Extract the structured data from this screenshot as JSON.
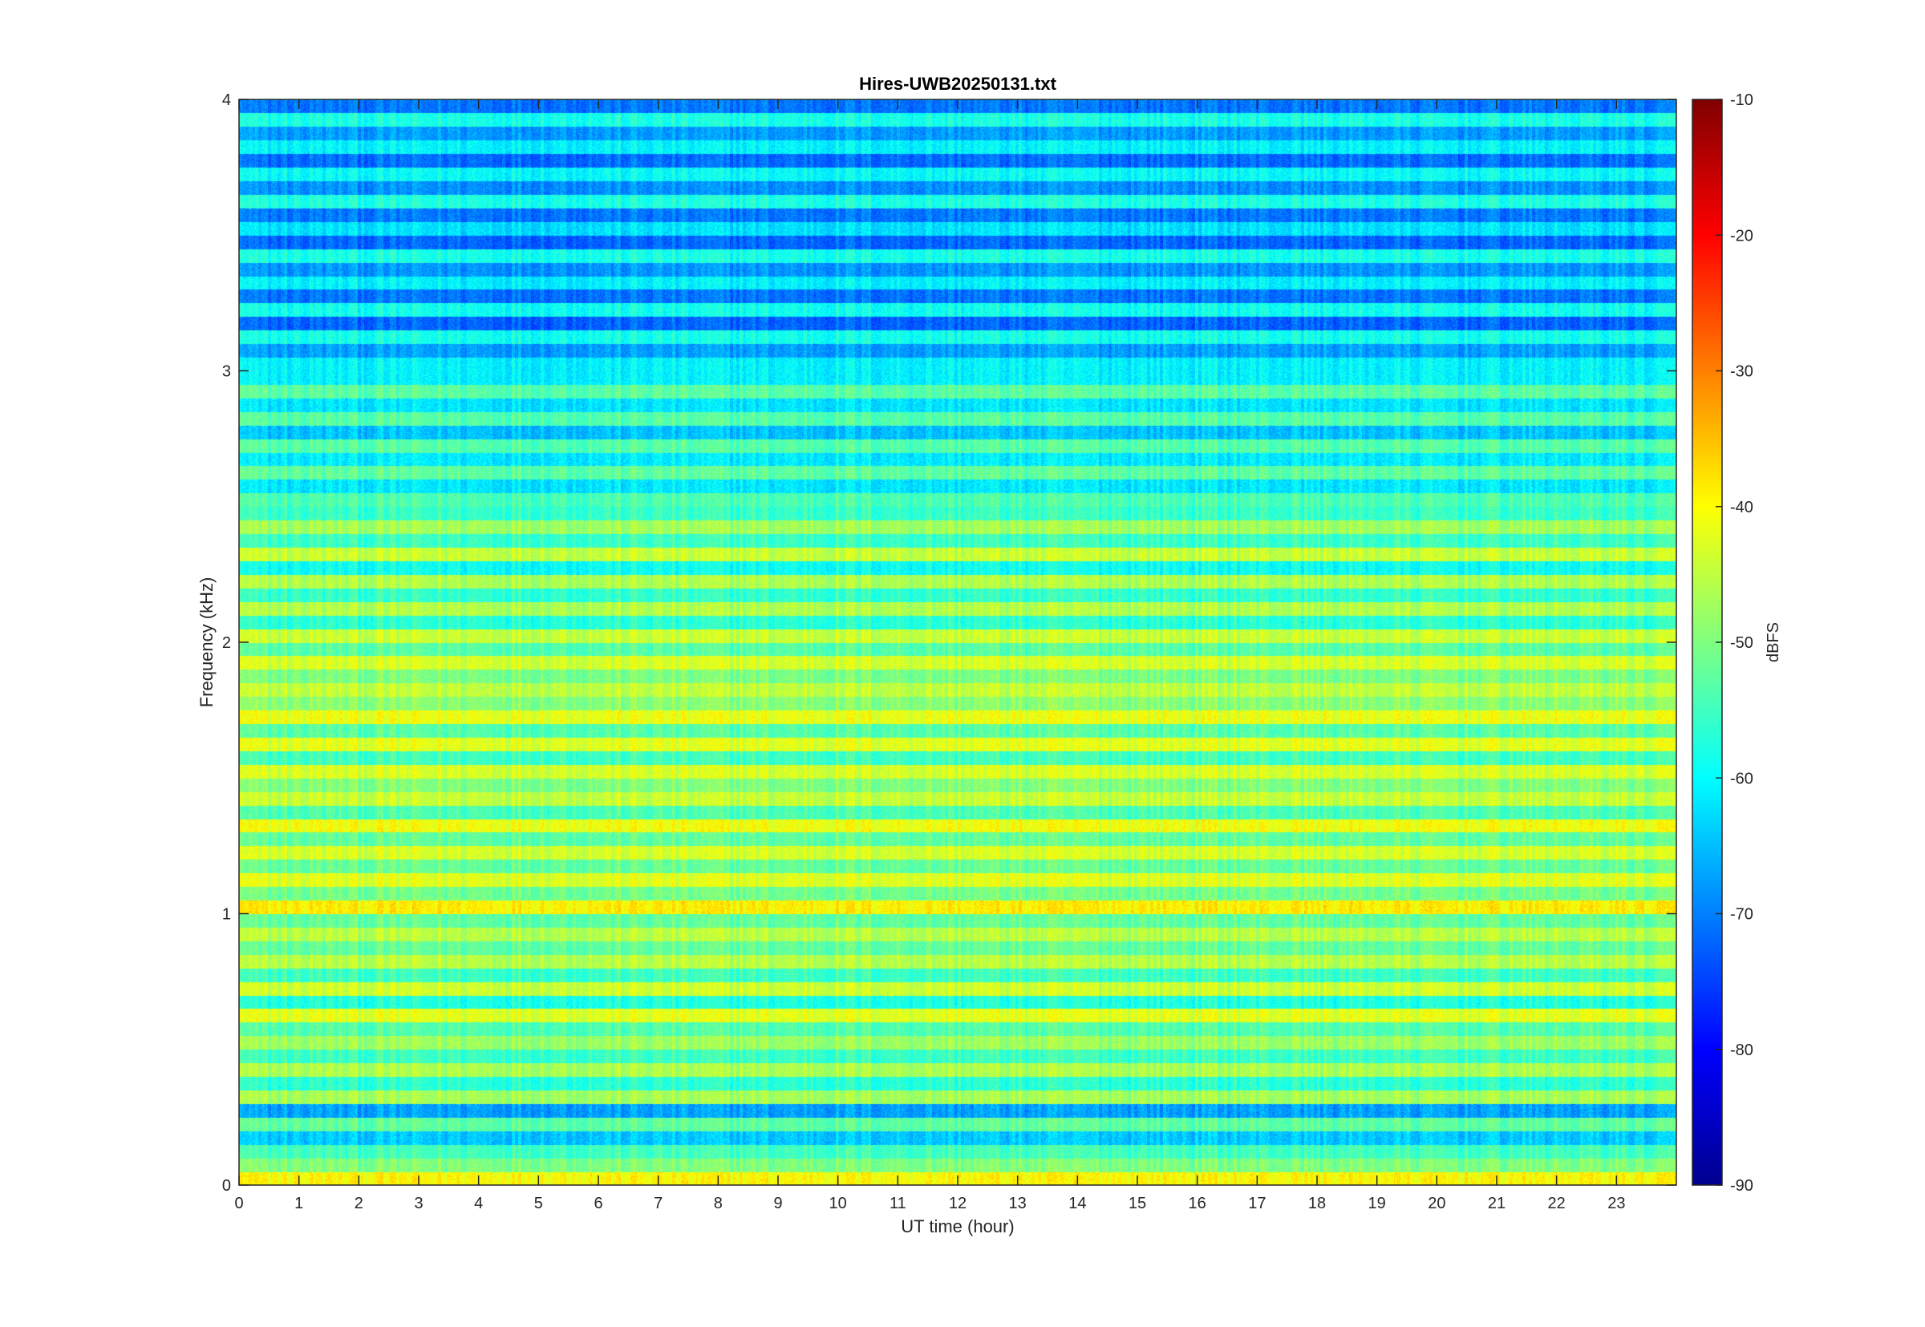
{
  "chart_data": {
    "type": "heatmap",
    "title": "Hires-UWB20250131.txt",
    "xlabel": "UT time (hour)",
    "ylabel": "Frequency (kHz)",
    "colorbar_label": "dBFS",
    "xlim": [
      0,
      24
    ],
    "ylim": [
      0,
      4
    ],
    "clim": [
      -90,
      -10
    ],
    "colormap": "jet",
    "x_ticks": [
      "0",
      "1",
      "2",
      "3",
      "4",
      "5",
      "6",
      "7",
      "8",
      "9",
      "10",
      "11",
      "12",
      "13",
      "14",
      "15",
      "16",
      "17",
      "18",
      "19",
      "20",
      "21",
      "22",
      "23"
    ],
    "y_ticks": [
      "0",
      "1",
      "2",
      "3",
      "4"
    ],
    "colorbar_ticks": [
      "-90",
      "-80",
      "-70",
      "-60",
      "-50",
      "-40",
      "-30",
      "-20",
      "-10"
    ],
    "grid": false,
    "band_levels_dBFS": [
      {
        "freq_khz": [
          0.0,
          0.1
        ],
        "level": -42
      },
      {
        "freq_khz": [
          0.1,
          0.3
        ],
        "level": -60
      },
      {
        "freq_khz": [
          0.3,
          0.5
        ],
        "level": -52
      },
      {
        "freq_khz": [
          0.5,
          1.0
        ],
        "level": -50
      },
      {
        "freq_khz": [
          1.0,
          2.0
        ],
        "level": -47
      },
      {
        "freq_khz": [
          2.0,
          2.5
        ],
        "level": -52
      },
      {
        "freq_khz": [
          2.5,
          3.0
        ],
        "level": -58
      },
      {
        "freq_khz": [
          3.0,
          4.0
        ],
        "level": -65
      }
    ]
  }
}
